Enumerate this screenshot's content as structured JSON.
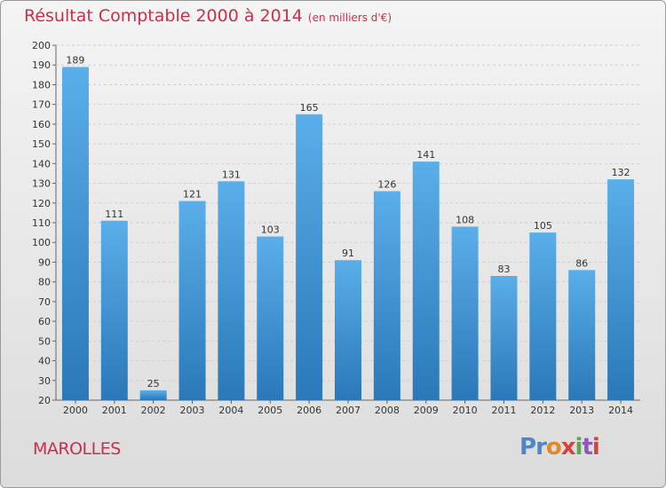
{
  "header": {
    "title": "Résultat Comptable 2000 à 2014",
    "subtitle": "(en milliers d'€)"
  },
  "footer": {
    "commune": "MAROLLES",
    "logo": "Proxiti"
  },
  "colors": {
    "title": "#c8304a",
    "bar_top": "#5aaeea",
    "bar_bottom": "#2a78b8",
    "grid": "#cfcfcf"
  },
  "chart_data": {
    "type": "bar",
    "title": "Résultat Comptable 2000 à 2014",
    "xlabel": "",
    "ylabel": "en milliers d'€",
    "categories": [
      "2000",
      "2001",
      "2002",
      "2003",
      "2004",
      "2005",
      "2006",
      "2007",
      "2008",
      "2009",
      "2010",
      "2011",
      "2012",
      "2013",
      "2014"
    ],
    "values": [
      189,
      111,
      25,
      121,
      131,
      103,
      165,
      91,
      126,
      141,
      108,
      83,
      105,
      86,
      132
    ],
    "ylim": [
      20,
      200
    ],
    "ytick_step": 10,
    "grid": true,
    "data_labels": true
  }
}
